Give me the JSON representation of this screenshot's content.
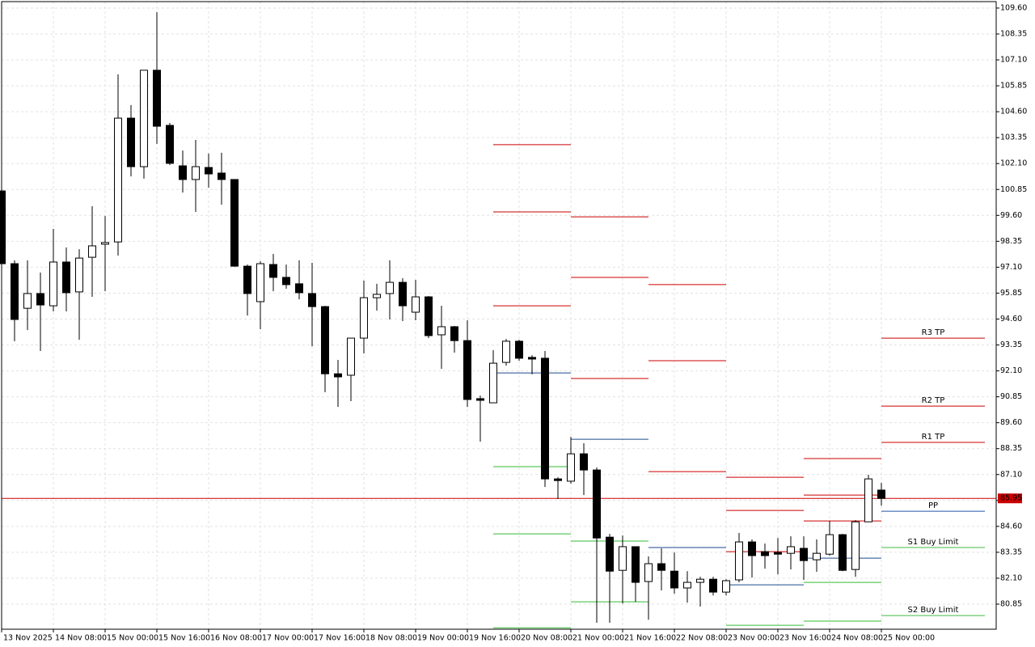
{
  "chart_data": {
    "type": "candlestick",
    "categories": [
      "13 Nov 2025",
      null,
      null,
      null,
      "14 Nov 08:00",
      null,
      null,
      null,
      "15 Nov 00:00",
      null,
      null,
      null,
      "15 Nov 16:00",
      null,
      null,
      null,
      "16 Nov 08:00",
      null,
      null,
      null,
      "17 Nov 00:00",
      null,
      null,
      null,
      "17 Nov 16:00",
      null,
      null,
      null,
      "18 Nov 08:00",
      null,
      null,
      null,
      "19 Nov 00:00",
      null,
      null,
      null,
      "19 Nov 16:00",
      null,
      null,
      null,
      "20 Nov 08:00",
      null,
      null,
      null,
      "21 Nov 00:00",
      null,
      null,
      null,
      "21 Nov 16:00",
      null,
      null,
      null,
      "22 Nov 08:00",
      null,
      null,
      null,
      "23 Nov 00:00",
      null,
      null,
      null,
      "23 Nov 16:00",
      null,
      null,
      null,
      "24 Nov 08:00",
      null,
      null,
      null,
      "25 Nov 00:00"
    ],
    "open": [
      100.78,
      97.27,
      95.12,
      95.83,
      95.24,
      97.35,
      95.91,
      97.58,
      98.21,
      98.32,
      104.29,
      101.95,
      106.6,
      103.94,
      101.99,
      101.33,
      101.91,
      101.64,
      101.33,
      97.15,
      95.44,
      97.23,
      96.61,
      96.3,
      95.83,
      95.2,
      91.96,
      91.89,
      93.68,
      95.63,
      95.83,
      96.37,
      94.93,
      95.67,
      93.84,
      94.23,
      93.56,
      90.76,
      90.56,
      92.51,
      93.53,
      92.75,
      92.71,
      86.89,
      86.78,
      88.1,
      87.32,
      84.08,
      82.48,
      83.62,
      81.94,
      82.8,
      82.44,
      81.63,
      81.9,
      82.05,
      81.43,
      82.02,
      83.85,
      83.38,
      83.34,
      83.3,
      83.54,
      82.99,
      83.26,
      84.2,
      82.52,
      84.82,
      86.35
    ],
    "high": [
      100.78,
      97.43,
      97.43,
      96.84,
      98.95,
      98.05,
      97.97,
      100.04,
      99.57,
      106.4,
      104.92,
      106.6,
      109.4,
      104.06,
      102.73,
      103.24,
      102.58,
      102.62,
      101.33,
      97.23,
      97.39,
      97.74,
      97.23,
      97.43,
      97.31,
      95.24,
      92.63,
      93.68,
      96.45,
      96.3,
      97.43,
      96.57,
      96.49,
      95.71,
      95.24,
      94.27,
      94.54,
      90.91,
      93.1,
      93.64,
      93.6,
      92.86,
      93.06,
      86.97,
      88.92,
      88.61,
      87.44,
      84.24,
      84.16,
      83.62,
      83.15,
      83.54,
      83.34,
      82.44,
      82.17,
      82.17,
      82.05,
      84.28,
      83.97,
      83.77,
      84.04,
      84.12,
      84.12,
      83.97,
      84.86,
      84.24,
      84.9,
      87.09,
      86.7
    ],
    "low": [
      97.12,
      93.53,
      94.07,
      93.06,
      94.97,
      94.97,
      93.6,
      95.67,
      95.94,
      97.66,
      101.48,
      101.37,
      103.05,
      102.03,
      100.7,
      99.77,
      100.94,
      100.12,
      97.12,
      94.77,
      94.11,
      95.94,
      96.06,
      95.55,
      93.29,
      91.07,
      90.36,
      90.64,
      92.94,
      95.01,
      94.58,
      94.5,
      94.54,
      93.68,
      92.2,
      92.98,
      90.36,
      88.69,
      90.56,
      92.35,
      92.59,
      91.93,
      86.5,
      85.92,
      86.66,
      86.11,
      79.95,
      79.95,
      80.88,
      80.96,
      80.1,
      81.51,
      81.35,
      80.92,
      80.73,
      81.27,
      81.27,
      81.9,
      82.13,
      82.56,
      82.29,
      82.52,
      82.02,
      82.41,
      83.19,
      82.44,
      82.17,
      84.82,
      85.6
    ],
    "close": [
      97.27,
      94.58,
      95.83,
      95.28,
      97.35,
      95.87,
      97.54,
      98.13,
      98.29,
      104.29,
      101.95,
      106.6,
      103.9,
      102.11,
      101.33,
      101.95,
      101.6,
      101.33,
      97.15,
      95.83,
      97.27,
      96.61,
      96.26,
      95.87,
      95.2,
      91.96,
      91.81,
      93.68,
      95.63,
      95.79,
      96.37,
      95.24,
      95.67,
      93.8,
      94.23,
      93.56,
      90.72,
      90.68,
      92.47,
      93.53,
      92.71,
      92.67,
      86.89,
      86.81,
      88.1,
      87.32,
      84.04,
      82.44,
      83.62,
      81.9,
      82.8,
      82.48,
      81.63,
      81.9,
      82.05,
      81.43,
      81.98,
      83.85,
      83.19,
      83.19,
      83.26,
      83.62,
      82.95,
      83.3,
      84.2,
      82.48,
      84.82,
      86.89,
      85.95
    ],
    "up_color": "#ffffff",
    "down_color": "#000000",
    "ylim": [
      79.64,
      109.91
    ],
    "yticks": [
      {
        "value": 109.6,
        "label": "109.60"
      },
      {
        "value": 108.35,
        "label": "108.35"
      },
      {
        "value": 107.1,
        "label": "107.10"
      },
      {
        "value": 105.85,
        "label": "105.85"
      },
      {
        "value": 104.6,
        "label": "104.60"
      },
      {
        "value": 103.35,
        "label": "103.35"
      },
      {
        "value": 102.1,
        "label": "102.10"
      },
      {
        "value": 100.85,
        "label": "100.85"
      },
      {
        "value": 99.6,
        "label": "99.60"
      },
      {
        "value": 98.35,
        "label": "98.35"
      },
      {
        "value": 97.1,
        "label": "97.10"
      },
      {
        "value": 95.85,
        "label": "95.85"
      },
      {
        "value": 94.6,
        "label": "94.60"
      },
      {
        "value": 93.35,
        "label": "93.35"
      },
      {
        "value": 92.1,
        "label": "92.10"
      },
      {
        "value": 90.85,
        "label": "90.85"
      },
      {
        "value": 89.6,
        "label": "89.60"
      },
      {
        "value": 88.35,
        "label": "88.35"
      },
      {
        "value": 87.1,
        "label": "87.10"
      },
      {
        "value": 85.85,
        "label": "85.85"
      },
      {
        "value": 84.6,
        "label": "84.60"
      },
      {
        "value": 83.35,
        "label": "83.35"
      },
      {
        "value": 82.1,
        "label": "82.10"
      },
      {
        "value": 80.85,
        "label": "80.85"
      }
    ],
    "grid": true,
    "current_price": {
      "value": 85.95,
      "label": "85.95",
      "color": "#cc0000"
    },
    "pivots": [
      {
        "start": 38,
        "end": 44,
        "levels": [
          {
            "value": 103.01,
            "color": "#cc0000"
          },
          {
            "value": 99.77,
            "color": "#cc0000"
          },
          {
            "value": 95.24,
            "color": "#cc0000"
          },
          {
            "value": 92.0,
            "color": "#1e4a8c"
          },
          {
            "value": 87.48,
            "color": "#33bb33"
          },
          {
            "value": 84.24,
            "color": "#33bb33"
          },
          {
            "value": 79.71,
            "color": "#33bb33"
          }
        ]
      },
      {
        "start": 44,
        "end": 50,
        "levels": [
          {
            "value": 99.53,
            "color": "#cc0000"
          },
          {
            "value": 96.61,
            "color": "#cc0000"
          },
          {
            "value": 91.73,
            "color": "#cc0000"
          },
          {
            "value": 88.8,
            "color": "#1e4a8c"
          },
          {
            "value": 83.89,
            "color": "#33bb33"
          },
          {
            "value": 80.96,
            "color": "#33bb33"
          }
        ]
      },
      {
        "start": 50,
        "end": 56,
        "levels": [
          {
            "value": 96.26,
            "color": "#cc0000"
          },
          {
            "value": 92.59,
            "color": "#cc0000"
          },
          {
            "value": 87.24,
            "color": "#cc0000"
          },
          {
            "value": 83.58,
            "color": "#1e4a8c"
          }
        ]
      },
      {
        "start": 56,
        "end": 62,
        "levels": [
          {
            "value": 86.97,
            "color": "#cc0000"
          },
          {
            "value": 85.37,
            "color": "#cc0000"
          },
          {
            "value": 83.38,
            "color": "#cc0000"
          },
          {
            "value": 81.78,
            "color": "#1e4a8c"
          },
          {
            "value": 79.83,
            "color": "#33bb33"
          }
        ]
      },
      {
        "start": 62,
        "end": 68,
        "levels": [
          {
            "value": 87.87,
            "color": "#cc0000"
          },
          {
            "value": 86.11,
            "color": "#cc0000"
          },
          {
            "value": 84.86,
            "color": "#cc0000"
          },
          {
            "value": 83.07,
            "color": "#1e4a8c"
          },
          {
            "value": 81.9,
            "color": "#33bb33"
          },
          {
            "value": 80.03,
            "color": "#33bb33"
          }
        ]
      },
      {
        "start": 68,
        "end": 76,
        "levels": [
          {
            "value": 93.68,
            "color": "#cc0000",
            "label": "R3 TP"
          },
          {
            "value": 90.4,
            "color": "#cc0000",
            "label": "R2 TP"
          },
          {
            "value": 88.65,
            "color": "#cc0000",
            "label": "R1 TP"
          },
          {
            "value": 85.33,
            "color": "#2255aa",
            "label": "PP"
          },
          {
            "value": 83.58,
            "color": "#44bb44",
            "label": "S1 Buy Limit"
          },
          {
            "value": 80.3,
            "color": "#44bb44",
            "label": "S2 Buy Limit"
          }
        ]
      }
    ]
  }
}
